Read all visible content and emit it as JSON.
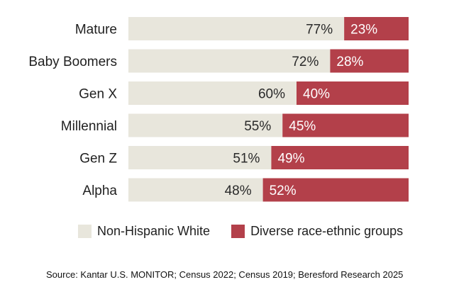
{
  "chart_data": {
    "type": "bar",
    "stacked": true,
    "orientation": "horizontal",
    "categories": [
      "Mature",
      "Baby Boomers",
      "Gen X",
      "Millennial",
      "Gen Z",
      "Alpha"
    ],
    "series": [
      {
        "name": "Non-Hispanic White",
        "values": [
          77,
          72,
          60,
          55,
          51,
          48
        ],
        "labels": [
          "77%",
          "72%",
          "60%",
          "55%",
          "51%",
          "48%"
        ]
      },
      {
        "name": "Diverse race-ethnic groups",
        "values": [
          23,
          28,
          40,
          45,
          49,
          52
        ],
        "labels": [
          "23%",
          "28%",
          "40%",
          "45%",
          "49%",
          "52%"
        ]
      }
    ],
    "xlim": [
      0,
      100
    ],
    "legend_position": "bottom",
    "grid": false
  },
  "colors": {
    "white_series": "#e8e6dc",
    "diverse_series": "#b3404a"
  },
  "legend": {
    "white_label": "Non-Hispanic White",
    "diverse_label": "Diverse race-ethnic groups"
  },
  "source": "Source: Kantar U.S. MONITOR; Census 2022; Census 2019; Beresford Research 2025"
}
